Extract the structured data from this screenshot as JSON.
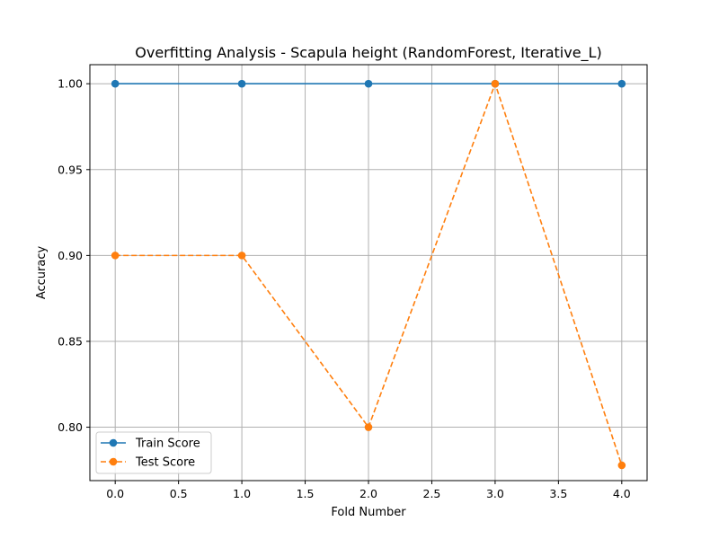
{
  "chart_data": {
    "type": "line",
    "title": "Overfitting Analysis - Scapula height (RandomForest, Iterative_L)",
    "xlabel": "Fold Number",
    "ylabel": "Accuracy",
    "x": [
      0,
      1,
      2,
      3,
      4
    ],
    "xlim": [
      -0.2,
      4.2
    ],
    "ylim": [
      0.7689,
      1.0111
    ],
    "xticks": [
      0.0,
      0.5,
      1.0,
      1.5,
      2.0,
      2.5,
      3.0,
      3.5,
      4.0
    ],
    "xtick_labels": [
      "0.0",
      "0.5",
      "1.0",
      "1.5",
      "2.0",
      "2.5",
      "3.0",
      "3.5",
      "4.0"
    ],
    "yticks": [
      0.8,
      0.85,
      0.9,
      0.95,
      1.0
    ],
    "ytick_labels": [
      "0.80",
      "0.85",
      "0.90",
      "0.95",
      "1.00"
    ],
    "grid": true,
    "legend_position": "lower-left",
    "series": [
      {
        "name": "Train Score",
        "values": [
          1.0,
          1.0,
          1.0,
          1.0,
          1.0
        ],
        "color": "#1f77b4",
        "linestyle": "solid",
        "marker": "circle"
      },
      {
        "name": "Test Score",
        "values": [
          0.9,
          0.9,
          0.8,
          1.0,
          0.7778
        ],
        "color": "#ff7f0e",
        "linestyle": "dashed",
        "marker": "circle"
      }
    ]
  }
}
